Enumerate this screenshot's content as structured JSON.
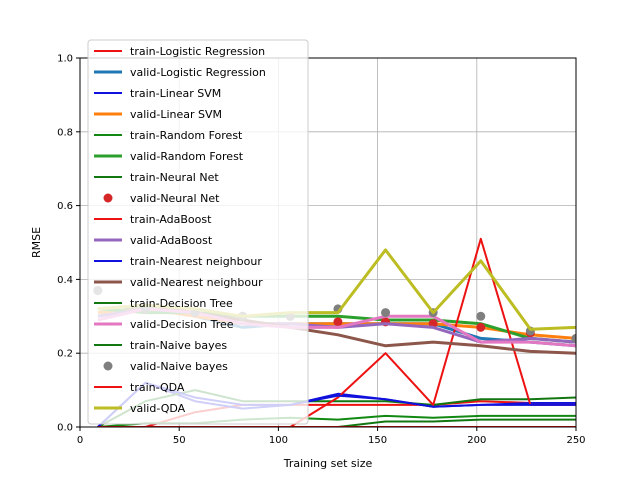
{
  "chart_data": {
    "type": "line",
    "title": "",
    "xlabel": "Training set size",
    "ylabel": "RMSE",
    "xlim": [
      0,
      250
    ],
    "ylim": [
      0.0,
      1.0
    ],
    "xticks": [
      0,
      50,
      100,
      150,
      200,
      250
    ],
    "yticks": [
      0.0,
      0.2,
      0.4,
      0.6,
      0.8,
      1.0
    ],
    "grid": true,
    "legend_position": "upper-left",
    "x": [
      9,
      33,
      58,
      82,
      106,
      130,
      154,
      178,
      202,
      227,
      250
    ],
    "series": [
      {
        "name": "train-Logistic Regression",
        "color": "#ee1111",
        "width": 2.0,
        "style": "line",
        "values": [
          0.0,
          0.0,
          0.04,
          0.06,
          0.06,
          0.06,
          0.06,
          0.06,
          0.07,
          0.065,
          0.065
        ]
      },
      {
        "name": "valid-Logistic Regression",
        "color": "#1f77b4",
        "width": 3.0,
        "style": "line",
        "values": [
          0.3,
          0.33,
          0.3,
          0.27,
          0.28,
          0.28,
          0.28,
          0.28,
          0.24,
          0.23,
          0.22
        ]
      },
      {
        "name": "train-Linear SVM",
        "color": "#1111dd",
        "width": 2.0,
        "style": "line",
        "values": [
          0.0,
          0.12,
          0.07,
          0.05,
          0.06,
          0.09,
          0.075,
          0.055,
          0.06,
          0.065,
          0.065
        ]
      },
      {
        "name": "valid-Linear SVM",
        "color": "#ff7f0e",
        "width": 3.0,
        "style": "line",
        "values": [
          0.31,
          0.32,
          0.3,
          0.28,
          0.28,
          0.28,
          0.28,
          0.28,
          0.27,
          0.25,
          0.24
        ]
      },
      {
        "name": "train-Random Forest",
        "color": "#118811",
        "width": 2.0,
        "style": "line",
        "values": [
          0.0,
          0.01,
          0.01,
          0.02,
          0.025,
          0.02,
          0.03,
          0.025,
          0.03,
          0.03,
          0.03
        ]
      },
      {
        "name": "valid-Random Forest",
        "color": "#2ca02c",
        "width": 3.0,
        "style": "line",
        "values": [
          0.32,
          0.31,
          0.31,
          0.3,
          0.3,
          0.3,
          0.29,
          0.29,
          0.28,
          0.24,
          0.23
        ]
      },
      {
        "name": "train-Neural Net",
        "color": "#117711",
        "width": 2.0,
        "style": "line",
        "values": [
          0.0,
          0.07,
          0.1,
          0.07,
          0.07,
          0.07,
          0.07,
          0.06,
          0.075,
          0.075,
          0.08
        ]
      },
      {
        "name": "valid-Neural Net",
        "color": "#d62728",
        "width": 0,
        "style": "marker",
        "values": [
          0.37,
          0.32,
          0.31,
          0.3,
          0.3,
          0.285,
          0.285,
          0.28,
          0.27,
          0.255,
          0.24
        ]
      },
      {
        "name": "train-AdaBoost",
        "color": "#ee1111",
        "width": 2.0,
        "style": "line",
        "values": [
          0.0,
          0.0,
          0.0,
          0.0,
          0.0,
          0.08,
          0.2,
          0.06,
          0.51,
          0.06,
          0.06
        ]
      },
      {
        "name": "valid-AdaBoost",
        "color": "#9467bd",
        "width": 3.0,
        "style": "line",
        "values": [
          0.3,
          0.32,
          0.31,
          0.28,
          0.28,
          0.27,
          0.28,
          0.27,
          0.23,
          0.24,
          0.23
        ]
      },
      {
        "name": "train-Nearest neighbour",
        "color": "#1111dd",
        "width": 2.0,
        "style": "line",
        "values": [
          0.0,
          0.12,
          0.08,
          0.06,
          0.06,
          0.085,
          0.075,
          0.055,
          0.06,
          0.06,
          0.06
        ]
      },
      {
        "name": "valid-Nearest neighbour",
        "color": "#8c564b",
        "width": 3.0,
        "style": "line",
        "values": [
          0.32,
          0.33,
          0.31,
          0.29,
          0.27,
          0.25,
          0.22,
          0.23,
          0.22,
          0.205,
          0.2
        ]
      },
      {
        "name": "train-Decision Tree",
        "color": "#117711",
        "width": 2.0,
        "style": "line",
        "values": [
          0.0,
          0.0,
          0.0,
          0.0,
          0.0,
          0.0,
          0.0,
          0.0,
          0.0,
          0.0,
          0.0
        ]
      },
      {
        "name": "valid-Decision Tree",
        "color": "#e377c2",
        "width": 3.0,
        "style": "line",
        "values": [
          0.29,
          0.32,
          0.31,
          0.28,
          0.27,
          0.27,
          0.3,
          0.3,
          0.23,
          0.23,
          0.22
        ]
      },
      {
        "name": "train-Naive bayes",
        "color": "#117711",
        "width": 2.0,
        "style": "line",
        "values": [
          0.0,
          0.0,
          0.0,
          0.0,
          0.0,
          0.0,
          0.015,
          0.015,
          0.02,
          0.02,
          0.02
        ]
      },
      {
        "name": "valid-Naive bayes",
        "color": "#7f7f7f",
        "width": 0,
        "style": "marker",
        "values": [
          0.37,
          0.32,
          0.31,
          0.3,
          0.3,
          0.32,
          0.31,
          0.31,
          0.3,
          0.26,
          0.24
        ]
      },
      {
        "name": "train-QDA",
        "color": "#ee1111",
        "width": 2.0,
        "style": "line",
        "values": [
          0.0,
          0.0,
          0.0,
          0.0,
          0.0,
          0.0,
          0.0,
          0.0,
          0.0,
          0.0,
          0.0
        ]
      },
      {
        "name": "valid-QDA",
        "color": "#bcbd22",
        "width": 3.0,
        "style": "line",
        "values": [
          0.32,
          0.33,
          0.32,
          0.3,
          0.31,
          0.31,
          0.48,
          0.31,
          0.45,
          0.265,
          0.27
        ]
      }
    ]
  }
}
